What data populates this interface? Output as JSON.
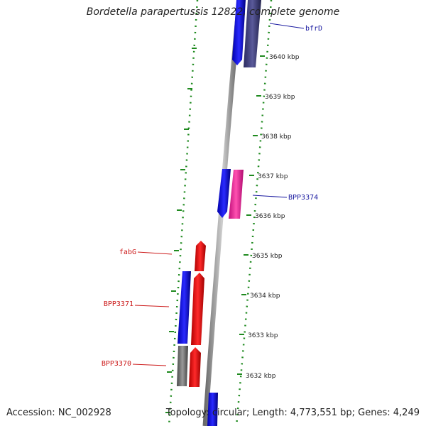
{
  "title": "Bordetella parapertussis 12822, complete genome",
  "accession_text": "Accession: NC_002928",
  "summary_text": "Topology: circular; Length: 4,773,551 bp; Genes: 4,249",
  "colors": {
    "backbone": "#8a8a8a",
    "ruler_dots": "#1f8a1f",
    "forward_gene": "#1a1aee",
    "reverse_gene": "#ee1a1a",
    "pink_gene": "#ee2a9a",
    "dark_gene": "#45457e",
    "gray_gene": "#777777",
    "forward_label": "#1a1aa0",
    "reverse_label": "#cc1a1a"
  },
  "kbp_ticks": [
    "3640 kbp",
    "3639 kbp",
    "3638 kbp",
    "3637 kbp",
    "3636 kbp",
    "3635 kbp",
    "3634 kbp",
    "3633 kbp",
    "3632 kbp"
  ],
  "gene_labels": [
    {
      "name": "bfrD",
      "strand": "forward"
    },
    {
      "name": "BPP3374",
      "strand": "forward"
    },
    {
      "name": "fabG",
      "strand": "reverse"
    },
    {
      "name": "BPP3371",
      "strand": "reverse"
    },
    {
      "name": "BPP3370",
      "strand": "reverse"
    }
  ]
}
